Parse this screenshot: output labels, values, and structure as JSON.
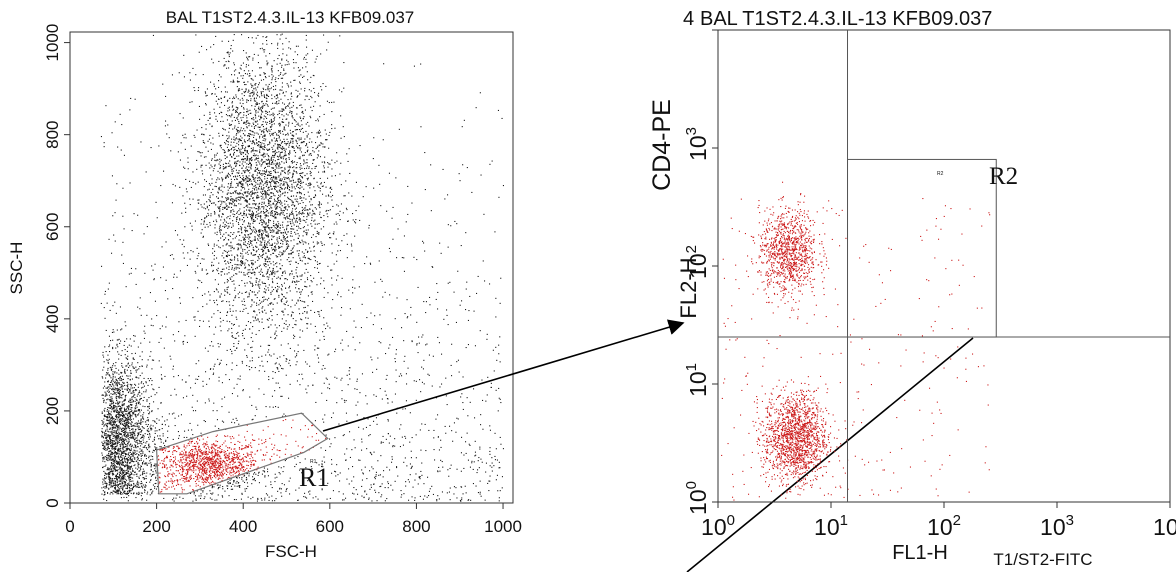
{
  "colors": {
    "events": "#1a1a1a",
    "gated_events": "#cc1a1a",
    "frame": "#333333",
    "gate": "#777777",
    "arrow": "#000000"
  },
  "panels": {
    "left": {
      "title": "BAL T1ST2.4.3.IL-13 KFB09.037",
      "xlabel": "FSC-H",
      "ylabel": "SSC-H",
      "gate_label": "R1",
      "gate_small_label": "R1"
    },
    "right": {
      "title_prefix": "4",
      "title": "BAL T1ST2.4.3.IL-13 KFB09.037",
      "xlabel": "FL1-H",
      "xlabel_marker": "T1/ST2-FITC",
      "ylabel": "FL2-H",
      "ylabel_marker": "CD4-PE",
      "gate_label": "R2",
      "gate_small_label": "R2"
    }
  },
  "chart_data": [
    {
      "type": "scatter",
      "title": "BAL T1ST2.4.3.IL-13 KFB09.037",
      "xlabel": "FSC-H",
      "ylabel": "SSC-H",
      "xlim": [
        0,
        1023
      ],
      "ylim": [
        0,
        1023
      ],
      "x_ticks": [
        "0",
        "200",
        "400",
        "600",
        "800",
        "1000"
      ],
      "y_ticks": [
        "0",
        "200",
        "400",
        "600",
        "800",
        "1000"
      ],
      "x_tick_values": [
        0,
        200,
        400,
        600,
        800,
        1000
      ],
      "y_tick_values": [
        0,
        200,
        400,
        600,
        800,
        1000
      ],
      "grid": false,
      "gate": {
        "name": "R1",
        "polygon": [
          [
            205,
            20
          ],
          [
            200,
            115
          ],
          [
            330,
            155
          ],
          [
            535,
            195
          ],
          [
            595,
            140
          ],
          [
            540,
            110
          ],
          [
            270,
            20
          ]
        ]
      },
      "populations": [
        {
          "name": "lymphocytes",
          "gated": true,
          "count": 1100,
          "center": [
            320,
            85
          ],
          "spread": [
            60,
            26
          ]
        },
        {
          "name": "granulocytes",
          "gated": false,
          "count": 4000,
          "center": [
            445,
            680
          ],
          "spread": [
            75,
            160
          ]
        },
        {
          "name": "debris",
          "gated": false,
          "count": 2000,
          "center": [
            115,
            140
          ],
          "spread": [
            38,
            90
          ]
        },
        {
          "name": "background",
          "gated": false,
          "count": 1800,
          "center": [
            450,
            420
          ],
          "spread": [
            380,
            330
          ]
        }
      ]
    },
    {
      "type": "scatter",
      "title": "BAL T1ST2.4.3.IL-13 KFB09.037",
      "xlabel": "FL1-H",
      "ylabel": "FL2-H",
      "xscale": "log",
      "yscale": "log",
      "xlim": [
        1,
        10000
      ],
      "ylim": [
        1,
        10000
      ],
      "x_ticks": [
        "10^0",
        "10^1",
        "10^2",
        "10^3",
        "10^4"
      ],
      "y_ticks": [
        "10^0",
        "10^1",
        "10^2",
        "10^3",
        "10^4"
      ],
      "grid": false,
      "quadrant_lines": {
        "x": 14,
        "y": 25
      },
      "gate": {
        "name": "R2",
        "x_range": [
          14,
          290
        ],
        "y_range": [
          25,
          800
        ]
      },
      "populations": [
        {
          "name": "CD4-negative cells",
          "count": 1500,
          "center_log10": [
            0.68,
            0.55
          ],
          "spread_log10": [
            0.14,
            0.19
          ]
        },
        {
          "name": "CD4-positive cells",
          "count": 1000,
          "center_log10": [
            0.62,
            2.12
          ],
          "spread_log10": [
            0.13,
            0.18
          ]
        },
        {
          "name": "sparse events",
          "count": 260,
          "center_log10": [
            1.2,
            1.4
          ],
          "spread_log10": [
            0.6,
            0.7
          ]
        }
      ]
    }
  ]
}
